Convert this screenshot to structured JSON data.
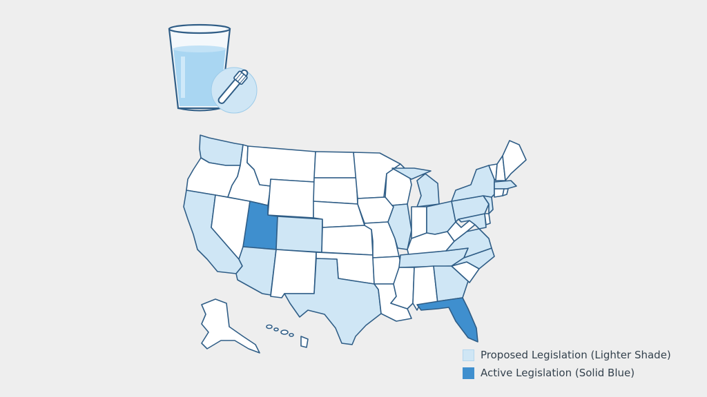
{
  "colors": {
    "background": "#eeeeee",
    "stroke": "#2f5d86",
    "none": "#ffffff",
    "proposed": "#cfe6f5",
    "active": "#3f8fce",
    "glass_water": "#a9d6f2",
    "badge": "#cfe6f5"
  },
  "icon": {
    "name": "water-glass-toothbrush-icon"
  },
  "legend": {
    "items": [
      {
        "status": "proposed",
        "label": "Proposed Legislation (Lighter Shade)"
      },
      {
        "status": "active",
        "label": "Active Legislation (Solid Blue)"
      }
    ]
  },
  "states": [
    {
      "id": "WA",
      "status": "proposed"
    },
    {
      "id": "OR",
      "status": "none"
    },
    {
      "id": "CA",
      "status": "proposed"
    },
    {
      "id": "NV",
      "status": "none"
    },
    {
      "id": "ID",
      "status": "none"
    },
    {
      "id": "MT",
      "status": "none"
    },
    {
      "id": "WY",
      "status": "none"
    },
    {
      "id": "UT",
      "status": "active"
    },
    {
      "id": "AZ",
      "status": "proposed"
    },
    {
      "id": "CO",
      "status": "proposed"
    },
    {
      "id": "NM",
      "status": "none"
    },
    {
      "id": "ND",
      "status": "none"
    },
    {
      "id": "SD",
      "status": "none"
    },
    {
      "id": "NE",
      "status": "none"
    },
    {
      "id": "KS",
      "status": "none"
    },
    {
      "id": "OK",
      "status": "none"
    },
    {
      "id": "TX",
      "status": "proposed"
    },
    {
      "id": "MN",
      "status": "none"
    },
    {
      "id": "IA",
      "status": "none"
    },
    {
      "id": "MO",
      "status": "none"
    },
    {
      "id": "AR",
      "status": "none"
    },
    {
      "id": "LA",
      "status": "none"
    },
    {
      "id": "WI",
      "status": "none"
    },
    {
      "id": "IL",
      "status": "proposed"
    },
    {
      "id": "MI",
      "status": "proposed"
    },
    {
      "id": "IN",
      "status": "none"
    },
    {
      "id": "OH",
      "status": "proposed"
    },
    {
      "id": "KY",
      "status": "none"
    },
    {
      "id": "TN",
      "status": "proposed"
    },
    {
      "id": "MS",
      "status": "none"
    },
    {
      "id": "AL",
      "status": "none"
    },
    {
      "id": "GA",
      "status": "proposed"
    },
    {
      "id": "FL",
      "status": "active"
    },
    {
      "id": "SC",
      "status": "none"
    },
    {
      "id": "NC",
      "status": "proposed"
    },
    {
      "id": "VA",
      "status": "proposed"
    },
    {
      "id": "WV",
      "status": "none"
    },
    {
      "id": "PA",
      "status": "proposed"
    },
    {
      "id": "NY",
      "status": "proposed"
    },
    {
      "id": "VT",
      "status": "none"
    },
    {
      "id": "NH",
      "status": "none"
    },
    {
      "id": "ME",
      "status": "none"
    },
    {
      "id": "MA",
      "status": "proposed"
    },
    {
      "id": "CT",
      "status": "none"
    },
    {
      "id": "RI",
      "status": "none"
    },
    {
      "id": "NJ",
      "status": "proposed"
    },
    {
      "id": "DE",
      "status": "none"
    },
    {
      "id": "MD",
      "status": "proposed"
    },
    {
      "id": "AK",
      "status": "none"
    },
    {
      "id": "HI",
      "status": "none"
    }
  ]
}
